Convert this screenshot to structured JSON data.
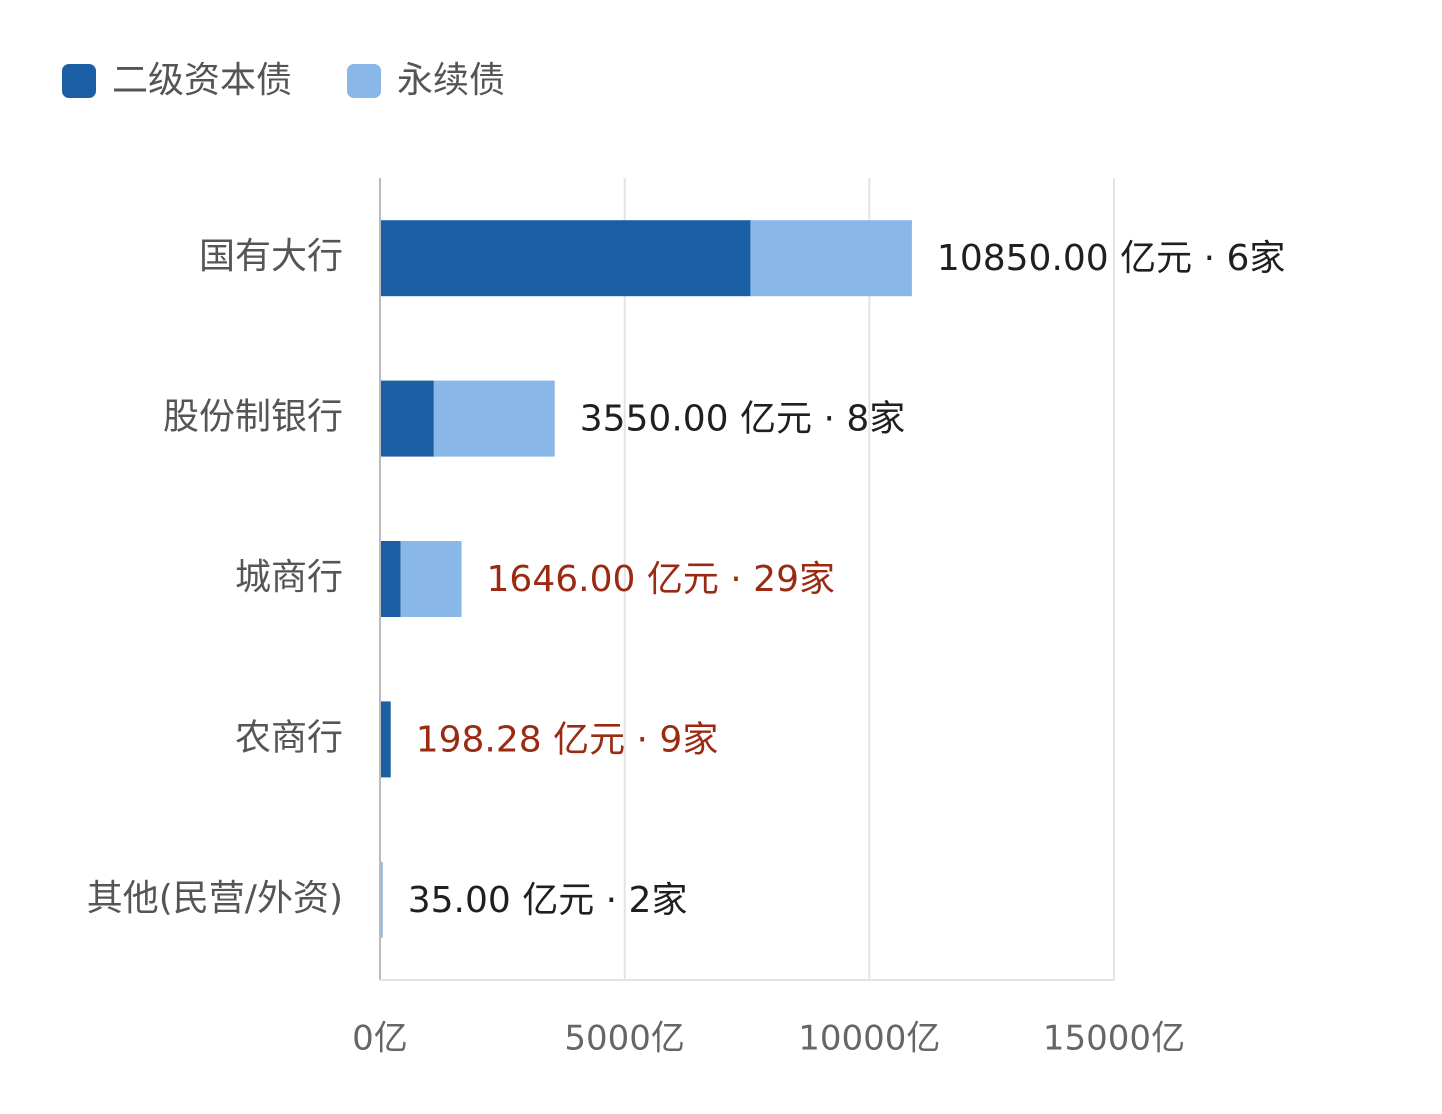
{
  "chart_data": {
    "type": "stacked-bar-horizontal",
    "categories": [
      "国有大行",
      "股份制银行",
      "城商行",
      "农商行",
      "其他(民营/外资)"
    ],
    "series": [
      {
        "name": "二级资本债",
        "color": "#1a5fa3",
        "values": [
          7550,
          1080,
          400,
          198.28,
          0
        ]
      },
      {
        "name": "永续债",
        "color": "#89b8e8",
        "values": [
          3300,
          2470,
          1246,
          0,
          35
        ]
      }
    ],
    "totals": [
      10850,
      3550,
      1646,
      198.28,
      35
    ],
    "total_labels": [
      "10850.00 亿元 · 6家",
      "3550.00 亿元 · 8家",
      "1646.00 亿元 · 29家",
      "198.28 亿元 · 9家",
      "35.00 亿元 · 2家"
    ],
    "total_label_colors": [
      "#1f1f1f",
      "#1f1f1f",
      "#9a2b12",
      "#9a2b12",
      "#1f1f1f"
    ],
    "xlim": [
      0,
      15000
    ],
    "xticks": [
      {
        "value": 0,
        "label": "0亿"
      },
      {
        "value": 5000,
        "label": "5000亿"
      },
      {
        "value": 10000,
        "label": "10000亿"
      },
      {
        "value": 15000,
        "label": "15000亿"
      }
    ],
    "grid": true
  }
}
